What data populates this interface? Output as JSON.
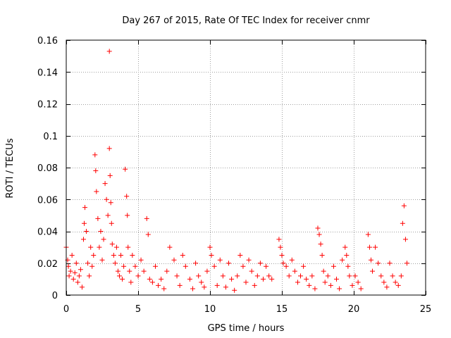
{
  "chart_data": {
    "type": "scatter",
    "title": "Day 267 of 2015, Rate Of TEC Index for receiver cnmr",
    "xlabel": "GPS time / hours",
    "ylabel": "ROTI / TECUs",
    "xlim": [
      0,
      25
    ],
    "ylim": [
      0,
      0.16
    ],
    "x_ticks": [
      0,
      5,
      10,
      15,
      20,
      25
    ],
    "x_tick_labels": [
      "0",
      "5",
      "10",
      "15",
      "20",
      "25"
    ],
    "y_ticks": [
      0,
      0.02,
      0.04,
      0.06,
      0.08,
      0.1,
      0.12,
      0.14,
      0.16
    ],
    "y_tick_labels": [
      "0",
      "0.02",
      "0.04",
      "0.06",
      "0.08",
      "0.1",
      "0.12",
      "0.14",
      "0.16"
    ],
    "grid": true,
    "marker": "+",
    "marker_color": "#ff0000",
    "series": [
      {
        "name": "ROTI",
        "x": [
          0.0,
          0.1,
          0.15,
          0.2,
          0.3,
          0.4,
          0.5,
          0.6,
          0.7,
          0.8,
          0.9,
          1.0,
          1.1,
          1.2,
          1.25,
          1.3,
          1.4,
          1.5,
          1.6,
          1.7,
          1.8,
          1.9,
          2.0,
          2.05,
          2.1,
          2.2,
          2.3,
          2.4,
          2.5,
          2.6,
          2.7,
          2.8,
          2.9,
          3.0,
          3.0,
          3.05,
          3.1,
          3.15,
          3.2,
          3.3,
          3.4,
          3.5,
          3.6,
          3.7,
          3.8,
          3.9,
          4.0,
          4.1,
          4.2,
          4.25,
          4.3,
          4.4,
          4.5,
          4.6,
          4.8,
          5.0,
          5.2,
          5.4,
          5.6,
          5.7,
          5.8,
          6.0,
          6.2,
          6.4,
          6.6,
          6.8,
          7.0,
          7.2,
          7.5,
          7.7,
          7.9,
          8.1,
          8.3,
          8.6,
          8.8,
          9.0,
          9.2,
          9.4,
          9.6,
          9.8,
          10.0,
          10.1,
          10.3,
          10.5,
          10.7,
          10.9,
          11.1,
          11.3,
          11.5,
          11.7,
          11.9,
          12.1,
          12.3,
          12.5,
          12.7,
          12.9,
          13.1,
          13.3,
          13.5,
          13.7,
          13.9,
          14.1,
          14.3,
          14.8,
          14.9,
          15.0,
          15.1,
          15.3,
          15.5,
          15.7,
          15.9,
          16.1,
          16.3,
          16.5,
          16.7,
          16.9,
          17.1,
          17.3,
          17.5,
          17.6,
          17.7,
          17.8,
          17.9,
          18.0,
          18.2,
          18.4,
          18.6,
          18.8,
          19.0,
          19.2,
          19.4,
          19.5,
          19.6,
          19.7,
          19.9,
          20.1,
          20.3,
          20.5,
          21.0,
          21.1,
          21.2,
          21.3,
          21.5,
          21.7,
          21.9,
          22.1,
          22.3,
          22.5,
          22.7,
          22.9,
          23.1,
          23.3,
          23.4,
          23.5,
          23.6,
          23.7
        ],
        "y": [
          0.03,
          0.022,
          0.018,
          0.012,
          0.015,
          0.025,
          0.01,
          0.014,
          0.02,
          0.008,
          0.012,
          0.016,
          0.005,
          0.035,
          0.045,
          0.055,
          0.04,
          0.02,
          0.012,
          0.03,
          0.018,
          0.025,
          0.088,
          0.078,
          0.065,
          0.048,
          0.03,
          0.04,
          0.022,
          0.035,
          0.07,
          0.06,
          0.05,
          0.153,
          0.092,
          0.075,
          0.058,
          0.045,
          0.032,
          0.025,
          0.02,
          0.03,
          0.015,
          0.012,
          0.025,
          0.01,
          0.018,
          0.079,
          0.062,
          0.05,
          0.03,
          0.015,
          0.008,
          0.025,
          0.018,
          0.012,
          0.022,
          0.015,
          0.048,
          0.038,
          0.01,
          0.008,
          0.018,
          0.006,
          0.01,
          0.004,
          0.015,
          0.03,
          0.022,
          0.012,
          0.006,
          0.025,
          0.018,
          0.01,
          0.004,
          0.02,
          0.012,
          0.008,
          0.005,
          0.015,
          0.03,
          0.025,
          0.018,
          0.006,
          0.022,
          0.012,
          0.005,
          0.02,
          0.01,
          0.003,
          0.012,
          0.025,
          0.018,
          0.008,
          0.022,
          0.015,
          0.006,
          0.012,
          0.02,
          0.01,
          0.018,
          0.012,
          0.01,
          0.035,
          0.03,
          0.025,
          0.02,
          0.018,
          0.012,
          0.022,
          0.015,
          0.008,
          0.012,
          0.018,
          0.01,
          0.006,
          0.012,
          0.004,
          0.042,
          0.038,
          0.032,
          0.025,
          0.015,
          0.008,
          0.012,
          0.006,
          0.018,
          0.01,
          0.004,
          0.022,
          0.03,
          0.025,
          0.018,
          0.012,
          0.006,
          0.012,
          0.008,
          0.004,
          0.038,
          0.03,
          0.022,
          0.015,
          0.03,
          0.02,
          0.012,
          0.008,
          0.005,
          0.02,
          0.012,
          0.008,
          0.006,
          0.012,
          0.045,
          0.056,
          0.035,
          0.02
        ]
      }
    ]
  }
}
